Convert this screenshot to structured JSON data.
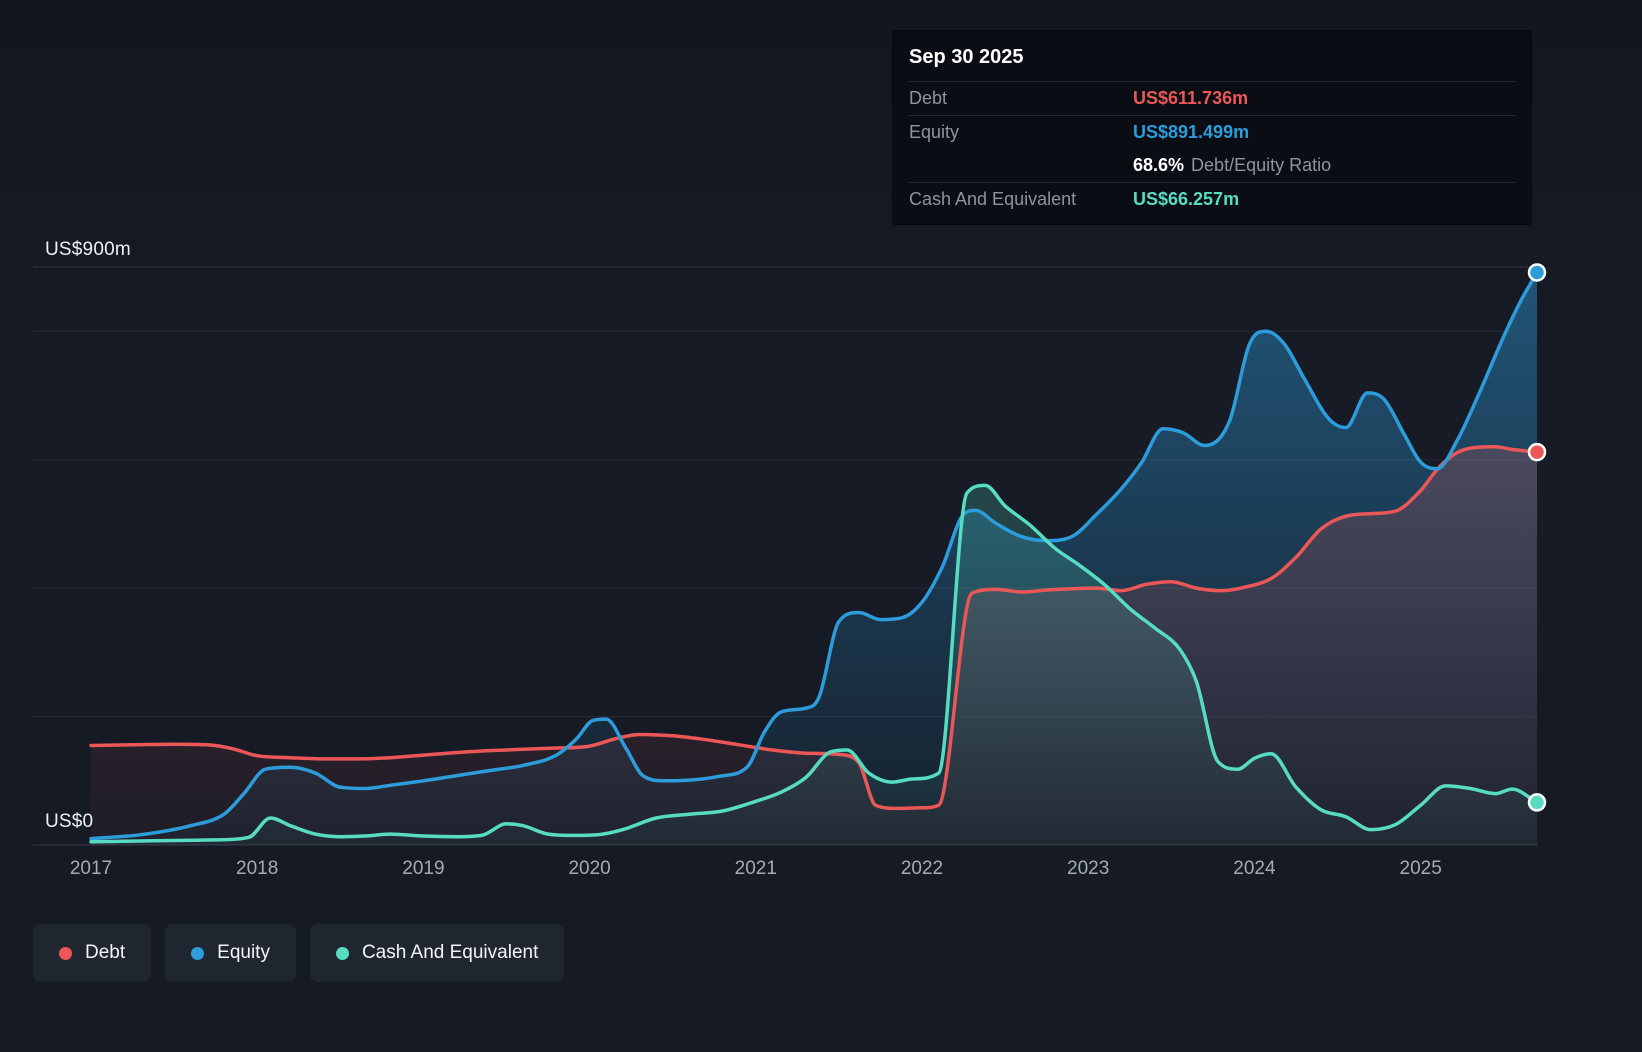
{
  "page": {
    "background": "#151a24",
    "grid_color": "rgba(255,255,255,0.08)"
  },
  "tooltip": {
    "title": "Sep 30 2025",
    "debt_label": "Debt",
    "debt_value": "US$611.736m",
    "equity_label": "Equity",
    "equity_value": "US$891.499m",
    "ratio_value": "68.6%",
    "ratio_label": "Debt/Equity Ratio",
    "cash_label": "Cash And Equivalent",
    "cash_value": "US$66.257m"
  },
  "axis": {
    "y_top_label": "US$900m",
    "y_zero_label": "US$0",
    "x_tick_labels": [
      "2017",
      "2018",
      "2019",
      "2020",
      "2021",
      "2022",
      "2023",
      "2024",
      "2025"
    ]
  },
  "legend": {
    "items": [
      {
        "label": "Debt",
        "color": "#eb5757"
      },
      {
        "label": "Equity",
        "color": "#2d9cdb"
      },
      {
        "label": "Cash And Equivalent",
        "color": "#57dcc1"
      }
    ]
  },
  "chart_data": {
    "type": "area",
    "title": "",
    "y_unit": "US$m",
    "x_range": [
      2017.0,
      2025.7
    ],
    "y_range": [
      0,
      900
    ],
    "y_gridlines": [
      0,
      200,
      400,
      600,
      800,
      900
    ],
    "x_ticks": [
      2017,
      2018,
      2019,
      2020,
      2021,
      2022,
      2023,
      2024,
      2025
    ],
    "legend_position": "bottom",
    "end_markers": true,
    "series": [
      {
        "name": "Debt",
        "color": "#eb5757",
        "fill_top": 0.3,
        "last_value": 611.736,
        "points": [
          [
            2017.0,
            155
          ],
          [
            2017.25,
            156
          ],
          [
            2017.5,
            157
          ],
          [
            2017.7,
            156
          ],
          [
            2017.85,
            150
          ],
          [
            2018.0,
            139
          ],
          [
            2018.2,
            136
          ],
          [
            2018.4,
            134
          ],
          [
            2018.6,
            134
          ],
          [
            2018.8,
            136
          ],
          [
            2019.0,
            140
          ],
          [
            2019.2,
            144
          ],
          [
            2019.4,
            147
          ],
          [
            2019.6,
            149
          ],
          [
            2019.8,
            151
          ],
          [
            2020.0,
            154
          ],
          [
            2020.15,
            165
          ],
          [
            2020.3,
            172
          ],
          [
            2020.5,
            170
          ],
          [
            2020.7,
            164
          ],
          [
            2020.9,
            156
          ],
          [
            2021.1,
            148
          ],
          [
            2021.3,
            143
          ],
          [
            2021.5,
            141
          ],
          [
            2021.62,
            128
          ],
          [
            2021.72,
            62
          ],
          [
            2021.85,
            57
          ],
          [
            2022.0,
            58
          ],
          [
            2022.1,
            62
          ],
          [
            2022.3,
            392
          ],
          [
            2022.45,
            398
          ],
          [
            2022.6,
            394
          ],
          [
            2022.75,
            397
          ],
          [
            2022.9,
            399
          ],
          [
            2023.05,
            400
          ],
          [
            2023.2,
            396
          ],
          [
            2023.35,
            406
          ],
          [
            2023.5,
            410
          ],
          [
            2023.65,
            400
          ],
          [
            2023.8,
            396
          ],
          [
            2023.95,
            402
          ],
          [
            2024.1,
            415
          ],
          [
            2024.25,
            448
          ],
          [
            2024.4,
            492
          ],
          [
            2024.55,
            512
          ],
          [
            2024.7,
            516
          ],
          [
            2024.85,
            520
          ],
          [
            2025.0,
            552
          ],
          [
            2025.1,
            585
          ],
          [
            2025.2,
            608
          ],
          [
            2025.3,
            618
          ],
          [
            2025.45,
            620
          ],
          [
            2025.55,
            616
          ],
          [
            2025.7,
            611.736
          ]
        ]
      },
      {
        "name": "Equity",
        "color": "#2d9cdb",
        "fill_top": 0.45,
        "last_value": 891.499,
        "points": [
          [
            2017.0,
            10
          ],
          [
            2017.3,
            16
          ],
          [
            2017.6,
            30
          ],
          [
            2017.8,
            48
          ],
          [
            2017.92,
            80
          ],
          [
            2018.05,
            118
          ],
          [
            2018.2,
            121
          ],
          [
            2018.35,
            112
          ],
          [
            2018.5,
            90
          ],
          [
            2018.65,
            88
          ],
          [
            2018.8,
            93
          ],
          [
            2019.0,
            100
          ],
          [
            2019.2,
            108
          ],
          [
            2019.4,
            116
          ],
          [
            2019.6,
            124
          ],
          [
            2019.8,
            140
          ],
          [
            2019.92,
            165
          ],
          [
            2020.02,
            194
          ],
          [
            2020.1,
            196
          ],
          [
            2020.22,
            150
          ],
          [
            2020.32,
            108
          ],
          [
            2020.45,
            100
          ],
          [
            2020.6,
            101
          ],
          [
            2020.78,
            107
          ],
          [
            2020.95,
            122
          ],
          [
            2021.05,
            175
          ],
          [
            2021.15,
            207
          ],
          [
            2021.3,
            213
          ],
          [
            2021.38,
            230
          ],
          [
            2021.5,
            348
          ],
          [
            2021.62,
            362
          ],
          [
            2021.75,
            351
          ],
          [
            2021.88,
            354
          ],
          [
            2022.0,
            378
          ],
          [
            2022.12,
            432
          ],
          [
            2022.25,
            515
          ],
          [
            2022.32,
            521
          ],
          [
            2022.45,
            500
          ],
          [
            2022.6,
            480
          ],
          [
            2022.75,
            474
          ],
          [
            2022.9,
            480
          ],
          [
            2023.05,
            515
          ],
          [
            2023.2,
            555
          ],
          [
            2023.32,
            595
          ],
          [
            2023.45,
            648
          ],
          [
            2023.57,
            642
          ],
          [
            2023.7,
            622
          ],
          [
            2023.85,
            660
          ],
          [
            2023.97,
            780
          ],
          [
            2024.07,
            800
          ],
          [
            2024.18,
            780
          ],
          [
            2024.3,
            726
          ],
          [
            2024.45,
            663
          ],
          [
            2024.55,
            650
          ],
          [
            2024.68,
            704
          ],
          [
            2024.78,
            694
          ],
          [
            2024.9,
            640
          ],
          [
            2025.0,
            596
          ],
          [
            2025.1,
            586
          ],
          [
            2025.22,
            630
          ],
          [
            2025.35,
            702
          ],
          [
            2025.5,
            792
          ],
          [
            2025.6,
            846
          ],
          [
            2025.7,
            891.499
          ]
        ]
      },
      {
        "name": "Cash And Equivalent",
        "color": "#57dcc1",
        "fill_top": 0.34,
        "last_value": 66.257,
        "points": [
          [
            2017.0,
            5
          ],
          [
            2017.25,
            6
          ],
          [
            2017.5,
            7
          ],
          [
            2017.75,
            8
          ],
          [
            2017.95,
            12
          ],
          [
            2018.08,
            42
          ],
          [
            2018.2,
            30
          ],
          [
            2018.35,
            17
          ],
          [
            2018.5,
            13
          ],
          [
            2018.65,
            14
          ],
          [
            2018.8,
            17
          ],
          [
            2019.0,
            14
          ],
          [
            2019.2,
            13
          ],
          [
            2019.35,
            15
          ],
          [
            2019.5,
            33
          ],
          [
            2019.6,
            30
          ],
          [
            2019.75,
            17
          ],
          [
            2019.9,
            15
          ],
          [
            2020.05,
            16
          ],
          [
            2020.2,
            24
          ],
          [
            2020.4,
            42
          ],
          [
            2020.6,
            48
          ],
          [
            2020.8,
            53
          ],
          [
            2021.0,
            68
          ],
          [
            2021.15,
            82
          ],
          [
            2021.3,
            105
          ],
          [
            2021.45,
            145
          ],
          [
            2021.55,
            148
          ],
          [
            2021.68,
            112
          ],
          [
            2021.82,
            98
          ],
          [
            2021.95,
            103
          ],
          [
            2022.1,
            112
          ],
          [
            2022.27,
            548
          ],
          [
            2022.38,
            560
          ],
          [
            2022.5,
            528
          ],
          [
            2022.65,
            498
          ],
          [
            2022.8,
            462
          ],
          [
            2022.95,
            435
          ],
          [
            2023.1,
            405
          ],
          [
            2023.25,
            368
          ],
          [
            2023.4,
            338
          ],
          [
            2023.55,
            305
          ],
          [
            2023.65,
            255
          ],
          [
            2023.78,
            130
          ],
          [
            2023.9,
            118
          ],
          [
            2024.0,
            135
          ],
          [
            2024.1,
            142
          ],
          [
            2024.25,
            90
          ],
          [
            2024.4,
            55
          ],
          [
            2024.55,
            44
          ],
          [
            2024.7,
            24
          ],
          [
            2024.85,
            32
          ],
          [
            2025.0,
            62
          ],
          [
            2025.15,
            92
          ],
          [
            2025.3,
            88
          ],
          [
            2025.45,
            80
          ],
          [
            2025.55,
            87
          ],
          [
            2025.7,
            66.257
          ]
        ]
      }
    ]
  }
}
